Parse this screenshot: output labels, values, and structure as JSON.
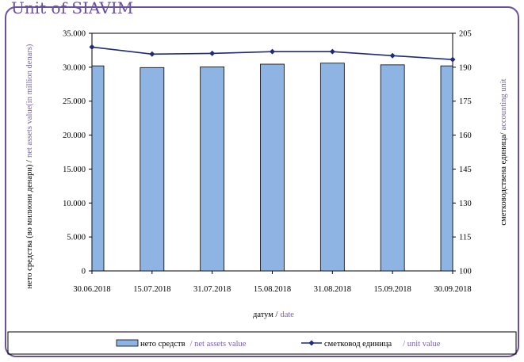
{
  "header": {
    "title": "Unit of SIAVIM"
  },
  "chart_data": {
    "type": "bar",
    "categories": [
      "30.06.2018",
      "15.07.2018",
      "31.07.2018",
      "15.08.2018",
      "31.08.2018",
      "15.09.2018",
      "30.09.2018"
    ],
    "series": [
      {
        "name": "нето средств / net assets value",
        "axis": "left",
        "type": "bar",
        "values": [
          30200,
          29950,
          30050,
          30450,
          30600,
          30350,
          30200
        ]
      },
      {
        "name": "сметковод единица / unit value",
        "axis": "right",
        "type": "line",
        "values": [
          198.9,
          195.8,
          196.1,
          196.9,
          196.9,
          195.1,
          193.4
        ]
      }
    ],
    "y_left": {
      "ylim": [
        0,
        35000
      ],
      "ticks": [
        "0",
        "5.000",
        "10.000",
        "15.000",
        "20.000",
        "25.000",
        "30.000",
        "35.000"
      ],
      "label_mk": "нето средства (во милиони денари) /",
      "label_en": "net assets value(in million denars)"
    },
    "y_right": {
      "ylim": [
        100,
        205
      ],
      "ticks": [
        "100",
        "115",
        "130",
        "145",
        "160",
        "175",
        "190",
        "205"
      ],
      "label_mk": "сметководствена единица/",
      "label_en": "accounting unit"
    },
    "x_axis": {
      "label_mk": "датум /",
      "label_en": "date"
    },
    "legend": {
      "placement": "bottom",
      "bar_mk": "нето средств",
      "bar_en": "/ net assets value",
      "line_mk": "сметковод единица",
      "line_en": "/ unit value"
    },
    "colors": {
      "bar_fill": "#8db4e2",
      "line": "#1f2a7a",
      "english_text": "#7a5fb0",
      "border": "#6b4fa0"
    },
    "grid": false
  }
}
